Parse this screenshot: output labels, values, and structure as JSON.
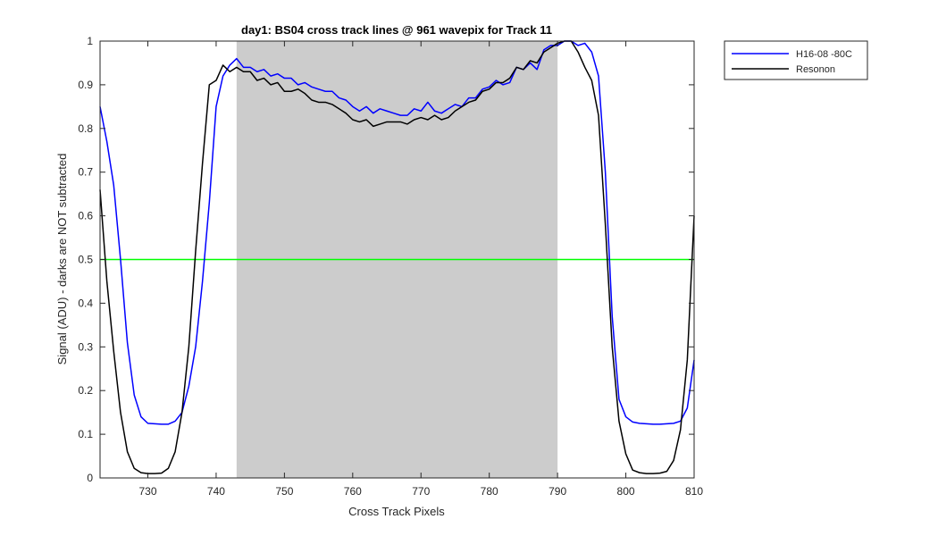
{
  "chart_data": {
    "type": "line",
    "title": "day1: BS04  cross track lines @ 961 wavepix for Track 11",
    "xlabel": "Cross Track Pixels",
    "ylabel": "Signal (ADU) - darks are NOT subtracted",
    "xlim": [
      723,
      810
    ],
    "ylim": [
      0,
      1
    ],
    "xticks": [
      730,
      740,
      750,
      760,
      770,
      780,
      790,
      800,
      810
    ],
    "yticks": [
      0,
      0.1,
      0.2,
      0.3,
      0.4,
      0.5,
      0.6,
      0.7,
      0.8,
      0.9,
      1
    ],
    "shaded_region": {
      "x": [
        743,
        790
      ],
      "color": "#cccccc"
    },
    "reference_line": {
      "y": 0.5,
      "color": "#00ff00"
    },
    "legend_position": "outside-top-right",
    "series": [
      {
        "name": "H16-08 -80C",
        "color": "#0000ff",
        "x": [
          723,
          724,
          725,
          726,
          727,
          728,
          729,
          730,
          731,
          732,
          733,
          734,
          735,
          736,
          737,
          738,
          739,
          740,
          741,
          742,
          743,
          744,
          745,
          746,
          747,
          748,
          749,
          750,
          751,
          752,
          753,
          754,
          755,
          756,
          757,
          758,
          759,
          760,
          761,
          762,
          763,
          764,
          765,
          766,
          767,
          768,
          769,
          770,
          771,
          772,
          773,
          774,
          775,
          776,
          777,
          778,
          779,
          780,
          781,
          782,
          783,
          784,
          785,
          786,
          787,
          788,
          789,
          790,
          791,
          792,
          793,
          794,
          795,
          796,
          797,
          798,
          799,
          800,
          801,
          802,
          803,
          804,
          805,
          806,
          807,
          808,
          809,
          810
        ],
        "values": [
          0.85,
          0.77,
          0.67,
          0.5,
          0.31,
          0.19,
          0.14,
          0.125,
          0.124,
          0.123,
          0.123,
          0.13,
          0.15,
          0.21,
          0.3,
          0.45,
          0.63,
          0.85,
          0.92,
          0.945,
          0.96,
          0.94,
          0.94,
          0.93,
          0.935,
          0.92,
          0.925,
          0.915,
          0.915,
          0.9,
          0.905,
          0.895,
          0.89,
          0.885,
          0.885,
          0.87,
          0.865,
          0.85,
          0.84,
          0.85,
          0.835,
          0.845,
          0.84,
          0.835,
          0.83,
          0.83,
          0.845,
          0.84,
          0.86,
          0.84,
          0.835,
          0.845,
          0.855,
          0.85,
          0.87,
          0.87,
          0.89,
          0.895,
          0.91,
          0.9,
          0.905,
          0.94,
          0.935,
          0.95,
          0.935,
          0.98,
          0.99,
          0.99,
          1.0,
          1.0,
          0.99,
          0.995,
          0.975,
          0.92,
          0.7,
          0.37,
          0.18,
          0.14,
          0.128,
          0.125,
          0.124,
          0.123,
          0.123,
          0.124,
          0.125,
          0.13,
          0.16,
          0.27
        ]
      },
      {
        "name": "Resonon",
        "color": "#000000",
        "x": [
          723,
          724,
          725,
          726,
          727,
          728,
          729,
          730,
          731,
          732,
          733,
          734,
          735,
          736,
          737,
          738,
          739,
          740,
          741,
          742,
          743,
          744,
          745,
          746,
          747,
          748,
          749,
          750,
          751,
          752,
          753,
          754,
          755,
          756,
          757,
          758,
          759,
          760,
          761,
          762,
          763,
          764,
          765,
          766,
          767,
          768,
          769,
          770,
          771,
          772,
          773,
          774,
          775,
          776,
          777,
          778,
          779,
          780,
          781,
          782,
          783,
          784,
          785,
          786,
          787,
          788,
          789,
          790,
          791,
          792,
          793,
          794,
          795,
          796,
          797,
          798,
          799,
          800,
          801,
          802,
          803,
          804,
          805,
          806,
          807,
          808,
          809,
          810
        ],
        "values": [
          0.66,
          0.45,
          0.29,
          0.15,
          0.06,
          0.022,
          0.012,
          0.01,
          0.01,
          0.011,
          0.022,
          0.06,
          0.15,
          0.3,
          0.52,
          0.72,
          0.9,
          0.91,
          0.945,
          0.93,
          0.94,
          0.93,
          0.93,
          0.91,
          0.915,
          0.9,
          0.905,
          0.885,
          0.885,
          0.89,
          0.88,
          0.865,
          0.86,
          0.86,
          0.855,
          0.845,
          0.835,
          0.82,
          0.815,
          0.82,
          0.805,
          0.81,
          0.815,
          0.815,
          0.815,
          0.81,
          0.82,
          0.825,
          0.82,
          0.83,
          0.82,
          0.825,
          0.84,
          0.85,
          0.86,
          0.865,
          0.885,
          0.89,
          0.905,
          0.905,
          0.915,
          0.94,
          0.935,
          0.955,
          0.95,
          0.975,
          0.985,
          0.995,
          1.0,
          1.0,
          0.975,
          0.94,
          0.91,
          0.83,
          0.58,
          0.3,
          0.13,
          0.055,
          0.018,
          0.012,
          0.01,
          0.01,
          0.011,
          0.015,
          0.04,
          0.11,
          0.27,
          0.6
        ]
      }
    ]
  }
}
